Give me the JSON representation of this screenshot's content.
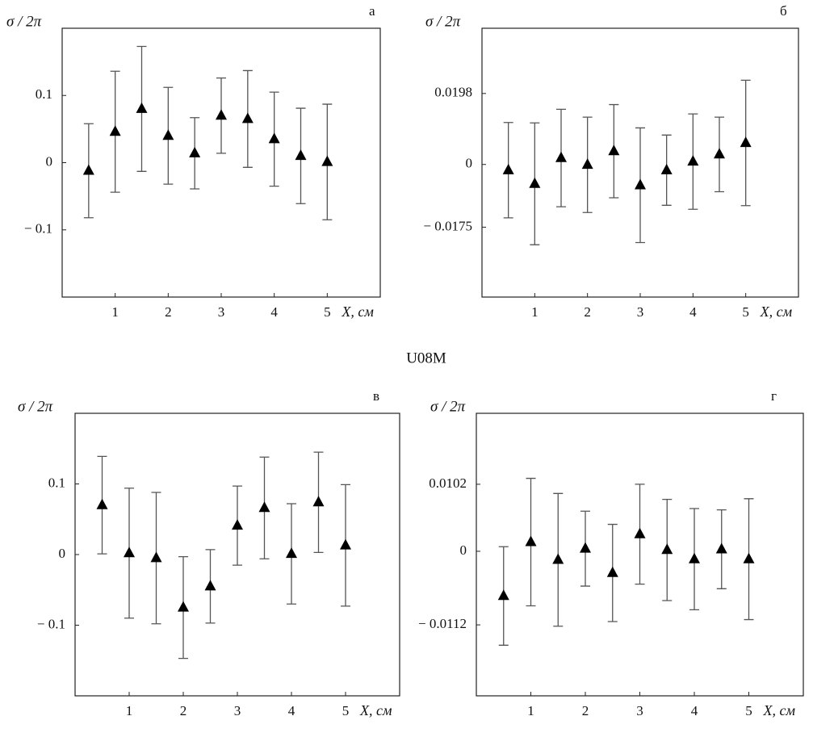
{
  "caption": "U08M",
  "chart_data": [
    {
      "type": "errorbar",
      "title": "а",
      "ylabel": "σ / 2π",
      "xlabel": "X, см",
      "x": [
        0.5,
        1,
        1.5,
        2,
        2.5,
        3,
        3.5,
        4,
        4.5,
        5
      ],
      "values": [
        -0.012,
        0.046,
        0.08,
        0.04,
        0.014,
        0.07,
        0.065,
        0.035,
        0.01,
        0.001
      ],
      "errors": [
        0.07,
        0.09,
        0.093,
        0.072,
        0.053,
        0.056,
        0.072,
        0.07,
        0.071,
        0.086
      ],
      "color": "#000000",
      "xlim": [
        0,
        6
      ],
      "ylim": [
        -0.2,
        0.2
      ],
      "xticks": [
        1,
        2,
        3,
        4,
        5
      ],
      "yticks": [
        {
          "value": -0.1,
          "label": "− 0.1"
        },
        0,
        0.1
      ]
    },
    {
      "type": "errorbar",
      "title": "б",
      "ylabel": "σ / 2π",
      "xlabel": "X, см",
      "x": [
        0.5,
        1,
        1.5,
        2,
        2.5,
        3,
        3.5,
        4,
        4.5,
        5
      ],
      "values": [
        -0.0016,
        -0.0054,
        0.0018,
        -0.0001,
        0.0037,
        -0.0058,
        -0.0016,
        0.0008,
        0.0028,
        0.006
      ],
      "errors": [
        0.0133,
        0.017,
        0.0136,
        0.0133,
        0.013,
        0.016,
        0.0098,
        0.0133,
        0.0104,
        0.0175
      ],
      "color": "#000000",
      "xlim": [
        0,
        6
      ],
      "ylim": [
        -0.037,
        0.038
      ],
      "xticks": [
        1,
        2,
        3,
        4,
        5
      ],
      "yticks": [
        {
          "value": -0.0175,
          "label": "− 0.0175"
        },
        0,
        0.0198
      ]
    },
    {
      "type": "errorbar",
      "title": "в",
      "ylabel": "σ / 2π",
      "xlabel": "X, см",
      "x": [
        0.5,
        1,
        1.5,
        2,
        2.5,
        3,
        3.5,
        4,
        4.5,
        5
      ],
      "values": [
        0.07,
        0.002,
        -0.005,
        -0.075,
        -0.045,
        0.041,
        0.066,
        0.001,
        0.074,
        0.013
      ],
      "errors": [
        0.069,
        0.092,
        0.093,
        0.072,
        0.052,
        0.056,
        0.072,
        0.071,
        0.071,
        0.086
      ],
      "color": "#000000",
      "xlim": [
        0,
        6
      ],
      "ylim": [
        -0.2,
        0.2
      ],
      "xticks": [
        1,
        2,
        3,
        4,
        5
      ],
      "yticks": [
        {
          "value": -0.1,
          "label": "− 0.1"
        },
        0,
        0.1
      ]
    },
    {
      "type": "errorbar",
      "title": "г",
      "ylabel": "σ / 2π",
      "xlabel": "X, см",
      "x": [
        0.5,
        1,
        1.5,
        2,
        2.5,
        3,
        3.5,
        4,
        4.5,
        5
      ],
      "values": [
        -0.0068,
        0.0014,
        -0.0013,
        0.0004,
        -0.0033,
        0.0026,
        0.0002,
        -0.0012,
        0.0003,
        -0.0012
      ],
      "errors": [
        0.0075,
        0.0097,
        0.0101,
        0.0057,
        0.0074,
        0.0076,
        0.0077,
        0.0077,
        0.006,
        0.0092
      ],
      "color": "#000000",
      "xlim": [
        0,
        6
      ],
      "ylim": [
        -0.022,
        0.021
      ],
      "xticks": [
        1,
        2,
        3,
        4,
        5
      ],
      "yticks": [
        {
          "value": -0.0112,
          "label": "− 0.0112"
        },
        0,
        0.0102
      ]
    }
  ]
}
